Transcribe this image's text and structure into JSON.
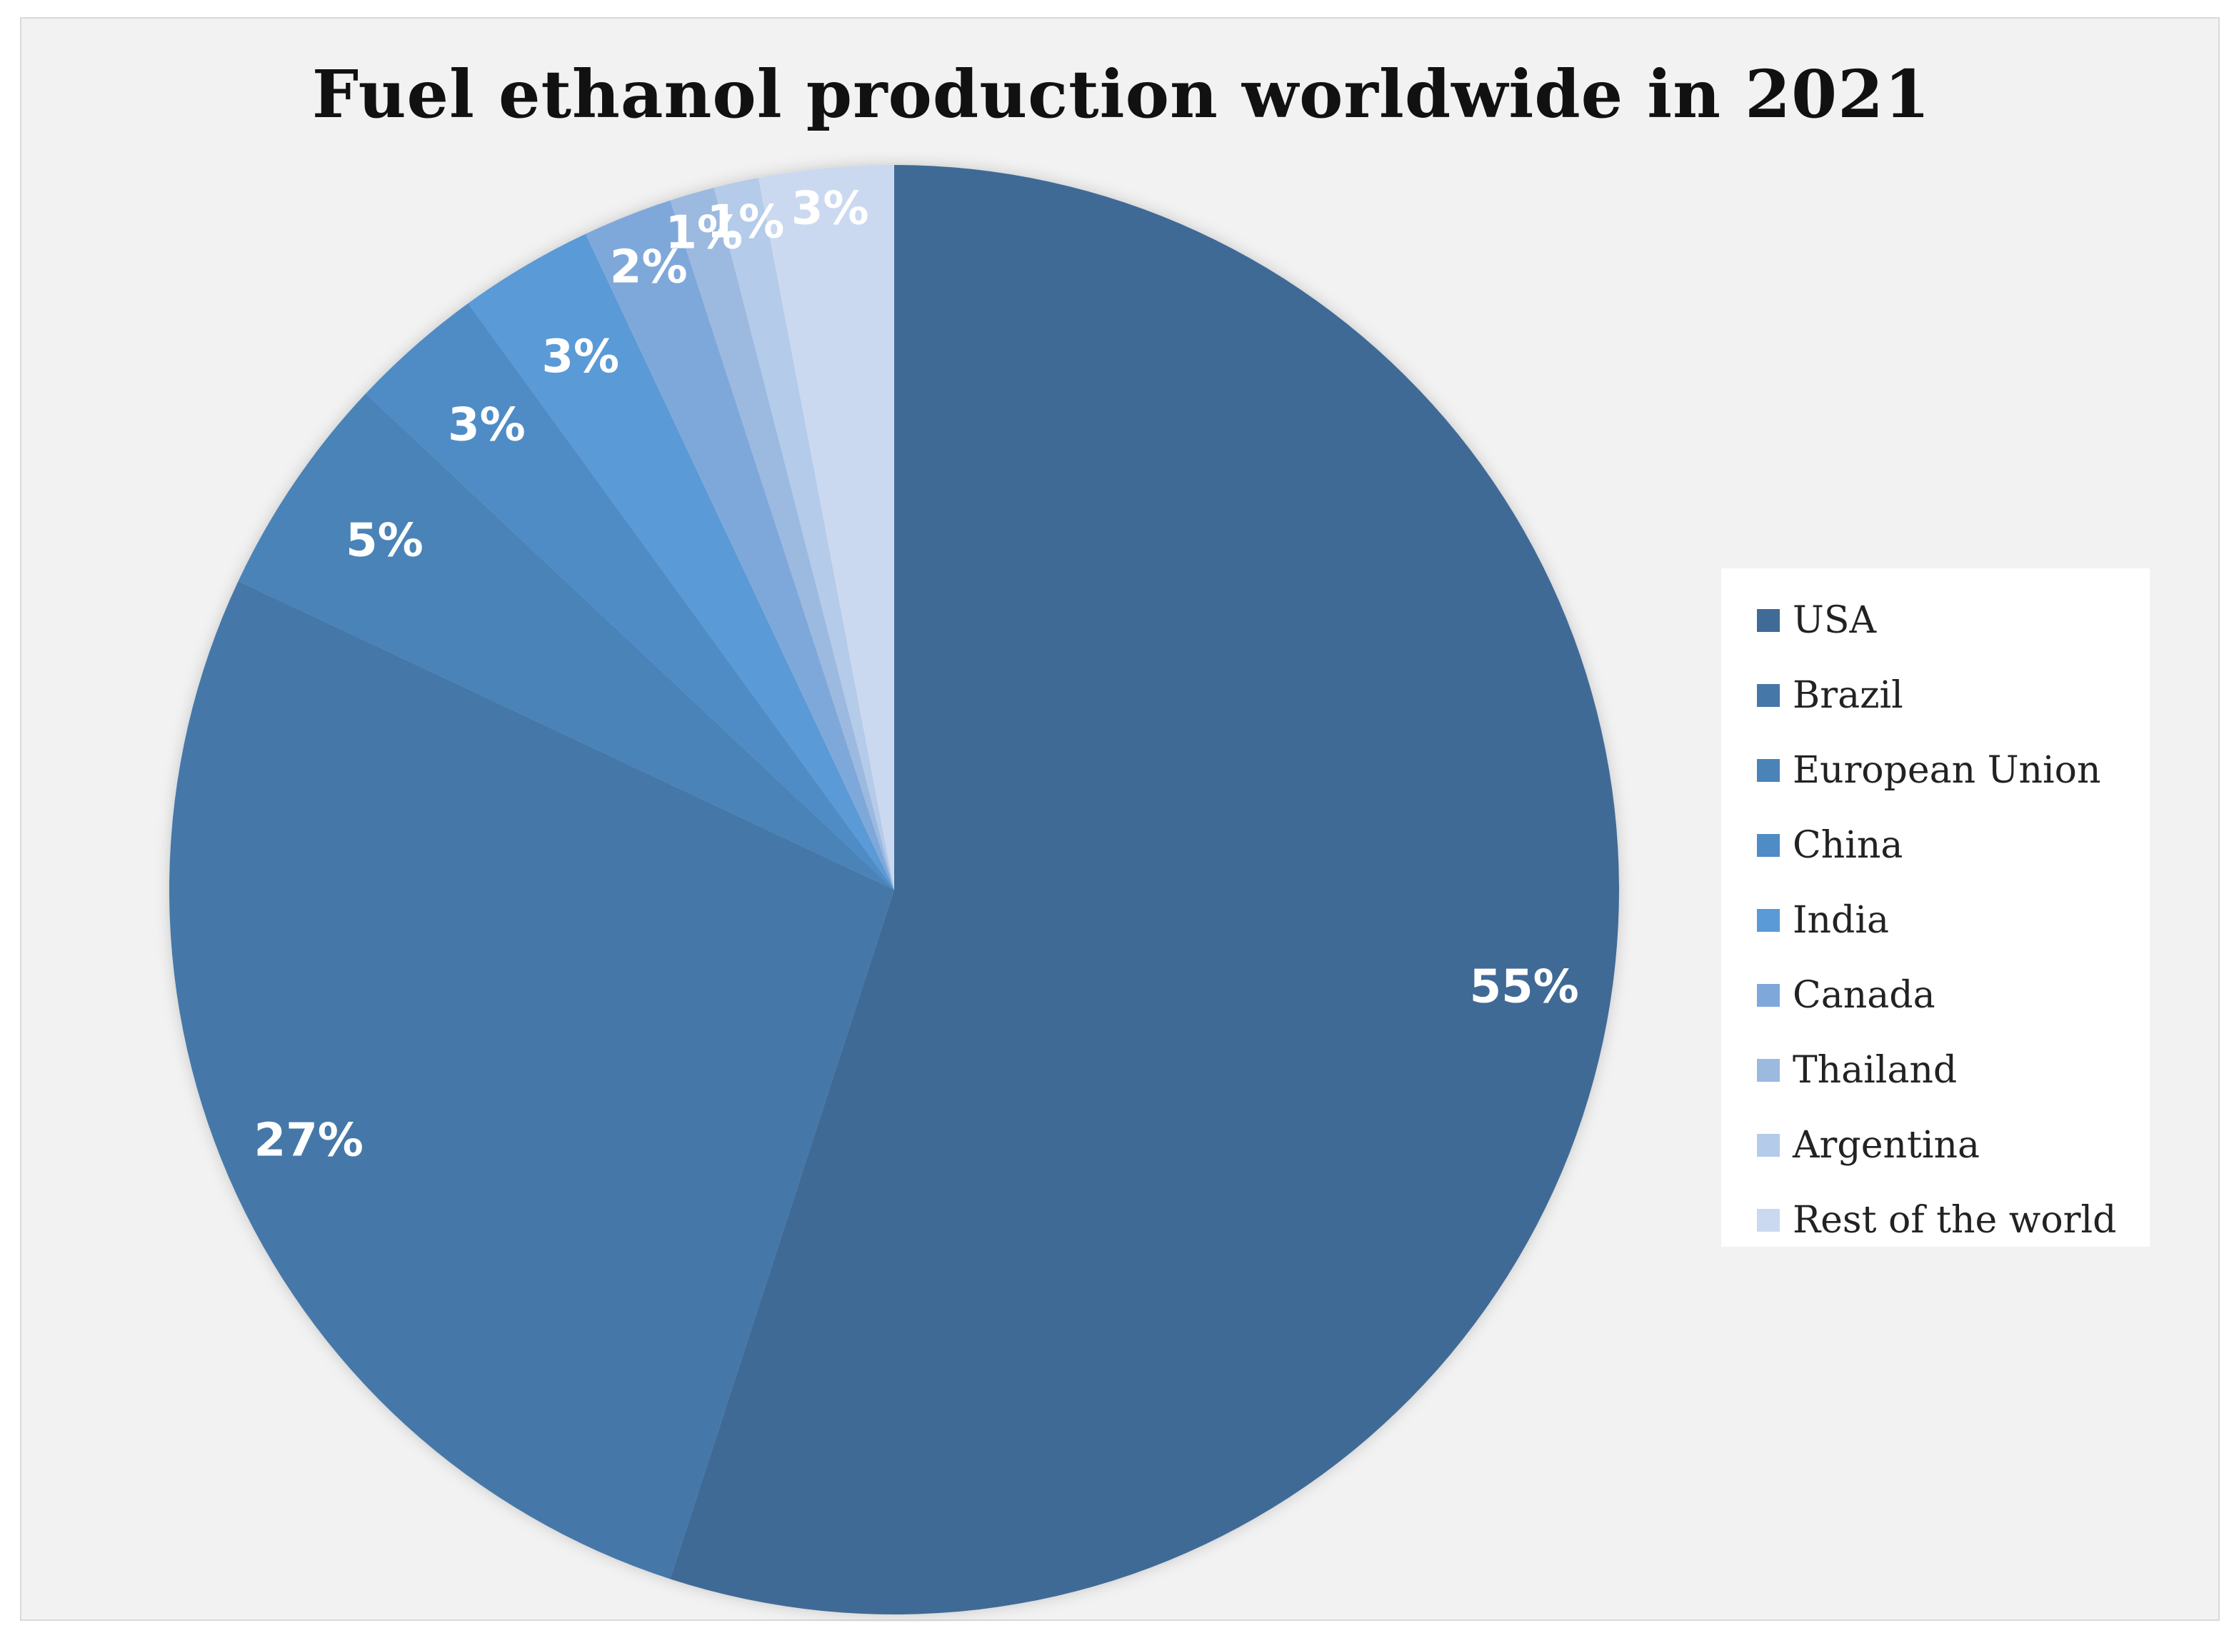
{
  "chart_data": {
    "type": "pie",
    "title": "Fuel ethanol production worldwide in 2021",
    "categories": [
      "USA",
      "Brazil",
      "European Union",
      "China",
      "India",
      "Canada",
      "Thailand",
      "Argentina",
      "Rest of the world"
    ],
    "values": [
      55,
      27,
      5,
      3,
      3,
      2,
      1,
      1,
      3
    ],
    "value_labels": [
      "55%",
      "27%",
      "5%",
      "3%",
      "3%",
      "2%",
      "1%",
      "1%",
      "3%"
    ],
    "unit": "%",
    "colors": [
      "#3f6b96",
      "#4578a8",
      "#4a83b8",
      "#4f8cc6",
      "#5a9ad6",
      "#7fa8da",
      "#9cb9e0",
      "#b4cbe9",
      "#cbd9f0"
    ],
    "start": "12 o'clock, clockwise",
    "legend_position": "right"
  }
}
